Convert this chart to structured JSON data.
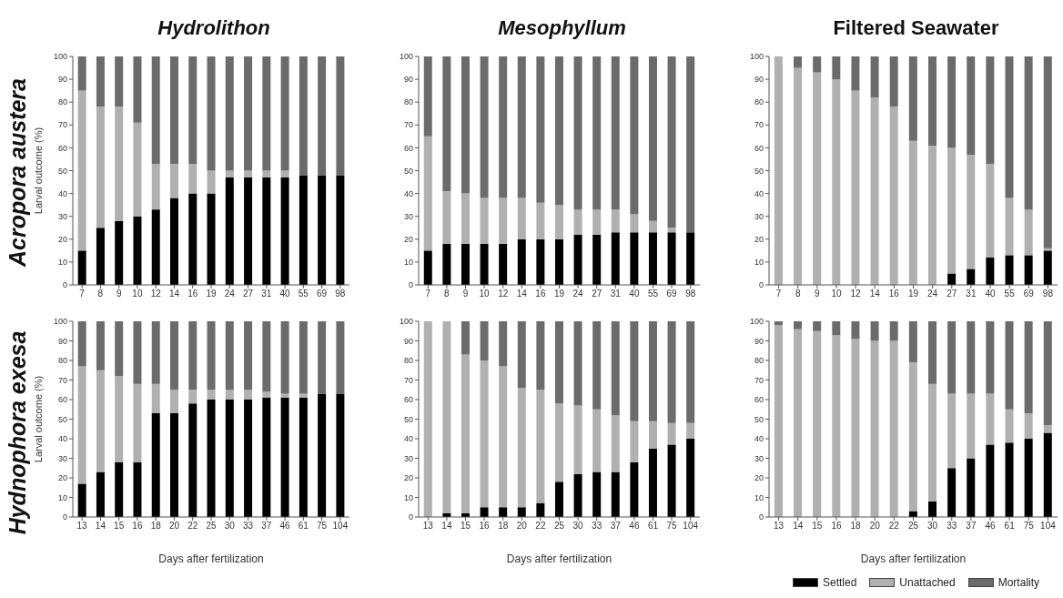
{
  "chart_data": [
    {
      "type": "bar",
      "stacked": true,
      "title": "Hydrolithon",
      "ylabel": "Larval outcome (%)",
      "annotations": [
        "Acropora austera"
      ],
      "categories": [
        "7",
        "8",
        "9",
        "10",
        "12",
        "14",
        "16",
        "19",
        "24",
        "27",
        "31",
        "40",
        "55",
        "69",
        "98"
      ],
      "ylim": [
        0,
        100
      ],
      "yticks": [
        0,
        10,
        20,
        30,
        40,
        50,
        60,
        70,
        80,
        90,
        100
      ],
      "series": [
        {
          "color": "#000000",
          "values": [
            15,
            25,
            28,
            30,
            33,
            38,
            40,
            40,
            47,
            47,
            47,
            47,
            48,
            48,
            48
          ]
        },
        {
          "color": "#b0b0b0",
          "values": [
            70,
            53,
            50,
            41,
            20,
            15,
            13,
            10,
            3,
            3,
            3,
            3,
            0,
            0,
            0
          ]
        },
        {
          "color": "#6b6b6b",
          "values": [
            15,
            22,
            22,
            29,
            47,
            47,
            47,
            50,
            50,
            50,
            50,
            50,
            52,
            52,
            52
          ]
        }
      ]
    },
    {
      "type": "bar",
      "stacked": true,
      "title": "Mesophyllum",
      "categories": [
        "7",
        "8",
        "9",
        "10",
        "12",
        "14",
        "16",
        "19",
        "24",
        "27",
        "31",
        "40",
        "55",
        "69",
        "98"
      ],
      "ylim": [
        0,
        100
      ],
      "yticks": [
        0,
        10,
        20,
        30,
        40,
        50,
        60,
        70,
        80,
        90,
        100
      ],
      "series": [
        {
          "color": "#000000",
          "values": [
            15,
            18,
            18,
            18,
            18,
            20,
            20,
            20,
            22,
            22,
            23,
            23,
            23,
            23,
            23
          ]
        },
        {
          "color": "#b0b0b0",
          "values": [
            50,
            23,
            22,
            20,
            20,
            18,
            16,
            15,
            11,
            11,
            10,
            8,
            5,
            2,
            0
          ]
        },
        {
          "color": "#6b6b6b",
          "values": [
            35,
            59,
            60,
            62,
            62,
            62,
            64,
            65,
            67,
            67,
            67,
            69,
            72,
            75,
            77
          ]
        }
      ]
    },
    {
      "type": "bar",
      "stacked": true,
      "title": "Filtered Seawater",
      "categories": [
        "7",
        "8",
        "9",
        "10",
        "12",
        "14",
        "16",
        "19",
        "24",
        "27",
        "31",
        "40",
        "55",
        "69",
        "98"
      ],
      "ylim": [
        0,
        100
      ],
      "yticks": [
        0,
        10,
        20,
        30,
        40,
        50,
        60,
        70,
        80,
        90,
        100
      ],
      "series": [
        {
          "color": "#000000",
          "values": [
            0,
            0,
            0,
            0,
            0,
            0,
            0,
            0,
            0,
            5,
            7,
            12,
            13,
            13,
            15
          ]
        },
        {
          "color": "#b0b0b0",
          "values": [
            100,
            95,
            93,
            90,
            85,
            82,
            78,
            63,
            61,
            55,
            50,
            41,
            25,
            20,
            1
          ]
        },
        {
          "color": "#6b6b6b",
          "values": [
            0,
            5,
            7,
            10,
            15,
            18,
            22,
            37,
            39,
            40,
            43,
            47,
            62,
            67,
            84
          ]
        }
      ]
    },
    {
      "type": "bar",
      "stacked": true,
      "ylabel": "Larval outcome (%)",
      "xlabel": "Days after fertilization",
      "annotations": [
        "Hydnophora exesa"
      ],
      "categories": [
        "13",
        "14",
        "15",
        "16",
        "18",
        "20",
        "22",
        "25",
        "30",
        "33",
        "37",
        "46",
        "61",
        "75",
        "104"
      ],
      "ylim": [
        0,
        100
      ],
      "yticks": [
        0,
        10,
        20,
        30,
        40,
        50,
        60,
        70,
        80,
        90,
        100
      ],
      "series": [
        {
          "color": "#000000",
          "values": [
            17,
            23,
            28,
            28,
            53,
            53,
            58,
            60,
            60,
            60,
            61,
            61,
            61,
            63,
            63
          ]
        },
        {
          "color": "#b0b0b0",
          "values": [
            60,
            52,
            44,
            40,
            15,
            12,
            7,
            5,
            5,
            5,
            3,
            2,
            2,
            0,
            0
          ]
        },
        {
          "color": "#6b6b6b",
          "values": [
            23,
            25,
            28,
            32,
            32,
            35,
            35,
            35,
            35,
            35,
            36,
            37,
            37,
            37,
            37
          ]
        }
      ]
    },
    {
      "type": "bar",
      "stacked": true,
      "xlabel": "Days after fertilization",
      "categories": [
        "13",
        "14",
        "15",
        "16",
        "18",
        "20",
        "22",
        "25",
        "30",
        "33",
        "37",
        "46",
        "61",
        "75",
        "104"
      ],
      "ylim": [
        0,
        100
      ],
      "yticks": [
        0,
        10,
        20,
        30,
        40,
        50,
        60,
        70,
        80,
        90,
        100
      ],
      "series": [
        {
          "color": "#000000",
          "values": [
            0,
            2,
            2,
            5,
            5,
            5,
            7,
            18,
            22,
            23,
            23,
            28,
            35,
            37,
            40
          ]
        },
        {
          "color": "#b0b0b0",
          "values": [
            100,
            98,
            81,
            75,
            72,
            61,
            58,
            40,
            35,
            32,
            29,
            21,
            14,
            11,
            8
          ]
        },
        {
          "color": "#6b6b6b",
          "values": [
            0,
            0,
            17,
            20,
            23,
            34,
            35,
            42,
            43,
            45,
            48,
            51,
            51,
            52,
            52
          ]
        }
      ]
    },
    {
      "type": "bar",
      "stacked": true,
      "xlabel": "Days after fertilization",
      "legend": "bottom",
      "categories": [
        "13",
        "14",
        "15",
        "16",
        "18",
        "20",
        "22",
        "25",
        "30",
        "33",
        "37",
        "46",
        "61",
        "75",
        "104"
      ],
      "ylim": [
        0,
        100
      ],
      "yticks": [
        0,
        10,
        20,
        30,
        40,
        50,
        60,
        70,
        80,
        90,
        100
      ],
      "series": [
        {
          "name": "Settled",
          "color": "#000000",
          "values": [
            0,
            0,
            0,
            0,
            0,
            0,
            0,
            3,
            8,
            25,
            30,
            37,
            38,
            40,
            43
          ]
        },
        {
          "name": "Unattached",
          "color": "#b0b0b0",
          "values": [
            98,
            96,
            95,
            93,
            91,
            90,
            90,
            76,
            60,
            38,
            33,
            26,
            17,
            13,
            4
          ]
        },
        {
          "name": "Mortality",
          "color": "#6b6b6b",
          "values": [
            2,
            4,
            5,
            7,
            9,
            10,
            10,
            21,
            32,
            37,
            37,
            37,
            45,
            47,
            53
          ]
        }
      ]
    }
  ]
}
